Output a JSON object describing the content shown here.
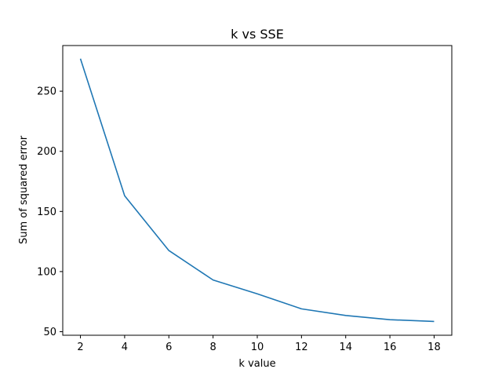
{
  "chart_data": {
    "type": "line",
    "title": "k vs SSE",
    "xlabel": "k value",
    "ylabel": "Sum of squared error",
    "x": [
      2,
      4,
      6,
      8,
      10,
      12,
      14,
      16,
      18
    ],
    "series": [
      {
        "values": [
          277,
          163,
          117.5,
          93,
          81.5,
          69,
          63.5,
          60,
          58.5
        ],
        "color": "#1f77b4"
      }
    ],
    "xticks": [
      2,
      4,
      6,
      8,
      10,
      12,
      14,
      16,
      18
    ],
    "yticks": [
      50,
      100,
      150,
      200,
      250
    ],
    "xlim": [
      1.2,
      18.8
    ],
    "ylim": [
      47.05,
      287.95
    ],
    "grid": false,
    "legend": "none"
  }
}
